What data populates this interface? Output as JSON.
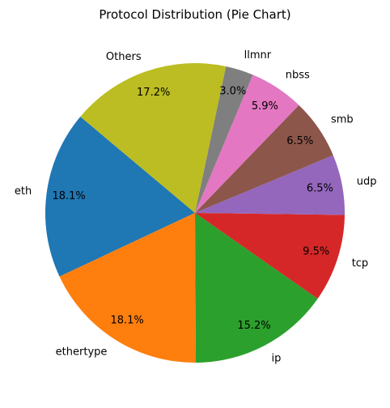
{
  "chart_data": {
    "type": "pie",
    "title": "Protocol Distribution (Pie Chart)",
    "start_angle_deg": 140,
    "direction": "counterclockwise",
    "slices": [
      {
        "label": "eth",
        "value": 18.1,
        "pct_label": "18.1%",
        "color": "#1f77b4"
      },
      {
        "label": "ethertype",
        "value": 18.1,
        "pct_label": "18.1%",
        "color": "#ff7f0e"
      },
      {
        "label": "ip",
        "value": 15.2,
        "pct_label": "15.2%",
        "color": "#2ca02c"
      },
      {
        "label": "tcp",
        "value": 9.5,
        "pct_label": "9.5%",
        "color": "#d62728"
      },
      {
        "label": "udp",
        "value": 6.5,
        "pct_label": "6.5%",
        "color": "#9467bd"
      },
      {
        "label": "smb",
        "value": 6.5,
        "pct_label": "6.5%",
        "color": "#8c564b"
      },
      {
        "label": "nbss",
        "value": 5.9,
        "pct_label": "5.9%",
        "color": "#e377c2"
      },
      {
        "label": "llmnr",
        "value": 3.0,
        "pct_label": "3.0%",
        "color": "#7f7f7f"
      },
      {
        "label": "Others",
        "value": 17.2,
        "pct_label": "17.2%",
        "color": "#bcbd22"
      }
    ]
  }
}
